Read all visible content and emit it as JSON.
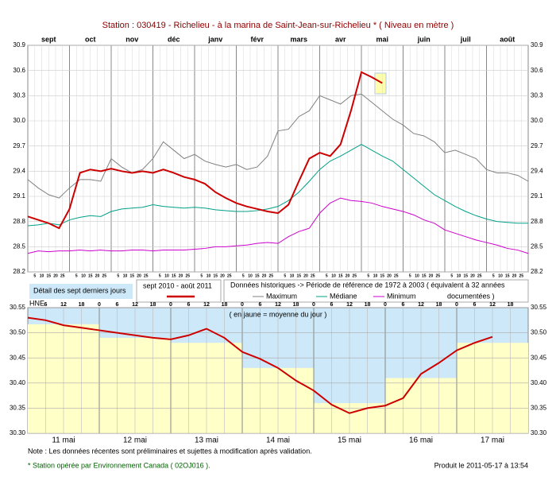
{
  "chart_data": [
    {
      "type": "line",
      "title": "Station : 030419      -   Richelieu - à la marina de Saint-Jean-sur-Richelieu *   ( Niveau en mètre )",
      "categories": [
        "sept",
        "oct",
        "nov",
        "déc",
        "janv",
        "févr",
        "mars",
        "avr",
        "mai",
        "juin",
        "juil",
        "août"
      ],
      "day_labels": [
        5,
        10,
        15,
        20,
        25
      ],
      "x": [
        0,
        0.25,
        0.5,
        0.75,
        1,
        1.25,
        1.5,
        1.75,
        2,
        2.25,
        2.5,
        2.75,
        3,
        3.25,
        3.5,
        3.75,
        4,
        4.25,
        4.5,
        4.75,
        5,
        5.25,
        5.5,
        5.75,
        6,
        6.25,
        6.5,
        6.75,
        7,
        7.25,
        7.5,
        7.75,
        8,
        8.25,
        8.5,
        8.75,
        9,
        9.25,
        9.5,
        9.75,
        10,
        10.25,
        10.5,
        10.75,
        11,
        11.25,
        11.5,
        11.75,
        12
      ],
      "xlim": [
        0,
        12
      ],
      "ylim": [
        28.2,
        30.9
      ],
      "yticks": [
        30.9,
        30.6,
        30.3,
        {
          "value": 30,
          "label": "30.0"
        },
        29.7,
        29.4,
        29.1,
        28.8,
        28.5,
        28.2
      ],
      "legend_note": [
        "Données historiques -> Période de référence  de 1972 à 2003  ( équivalent à 32 années",
        "documentées )"
      ],
      "series": [
        {
          "name": "sept 2010 - août 2011",
          "color": "#cc0000",
          "values": [
            28.86,
            28.82,
            28.78,
            28.72,
            28.95,
            29.38,
            29.42,
            29.4,
            29.43,
            29.4,
            29.38,
            29.4,
            29.38,
            29.42,
            29.38,
            29.33,
            29.3,
            29.25,
            29.15,
            29.08,
            29.02,
            28.98,
            28.95,
            28.92,
            28.9,
            29.0,
            29.28,
            29.55,
            29.62,
            29.58,
            29.72,
            30.12,
            30.58,
            30.52,
            30.45,
            null,
            null,
            null,
            null,
            null,
            null,
            null,
            null,
            null,
            null,
            null,
            null,
            null,
            null
          ]
        },
        {
          "name": "Maximum",
          "color": "#808080",
          "values": [
            29.3,
            29.2,
            29.12,
            29.08,
            29.2,
            29.3,
            29.3,
            29.28,
            29.55,
            29.45,
            29.38,
            29.42,
            29.55,
            29.75,
            29.65,
            29.55,
            29.6,
            29.52,
            29.48,
            29.45,
            29.48,
            29.42,
            29.45,
            29.58,
            29.88,
            29.9,
            30.05,
            30.12,
            30.3,
            30.25,
            30.2,
            30.3,
            30.32,
            30.22,
            30.12,
            30.02,
            29.95,
            29.85,
            29.82,
            29.75,
            29.62,
            29.65,
            29.6,
            29.55,
            29.42,
            29.38,
            29.38,
            29.35,
            29.28
          ]
        },
        {
          "name": "Médiane",
          "color": "#00a088",
          "values": [
            28.75,
            28.76,
            28.78,
            28.76,
            28.82,
            28.85,
            28.87,
            28.86,
            28.92,
            28.95,
            28.96,
            28.97,
            29.0,
            28.98,
            28.97,
            28.96,
            28.97,
            28.96,
            28.94,
            28.93,
            28.92,
            28.92,
            28.93,
            28.95,
            28.98,
            29.05,
            29.15,
            29.28,
            29.42,
            29.52,
            29.58,
            29.65,
            29.72,
            29.65,
            29.58,
            29.52,
            29.42,
            29.32,
            29.22,
            29.12,
            29.05,
            28.98,
            28.92,
            28.87,
            28.83,
            28.8,
            28.79,
            28.78,
            28.78
          ]
        },
        {
          "name": "Minimum",
          "color": "#cc00cc",
          "values": [
            28.42,
            28.45,
            28.44,
            28.45,
            28.45,
            28.46,
            28.45,
            28.46,
            28.45,
            28.45,
            28.46,
            28.46,
            28.45,
            28.46,
            28.46,
            28.46,
            28.47,
            28.48,
            28.5,
            28.5,
            28.51,
            28.52,
            28.54,
            28.55,
            28.54,
            28.62,
            28.68,
            28.72,
            28.9,
            29.02,
            29.08,
            29.05,
            29.04,
            29.02,
            28.98,
            28.95,
            28.92,
            28.88,
            28.82,
            28.78,
            28.7,
            28.66,
            28.62,
            28.58,
            28.55,
            28.52,
            28.48,
            28.46,
            28.42
          ]
        }
      ]
    },
    {
      "type": "line",
      "title": "Détail des sept derniers jours",
      "x_label": "HNE",
      "annotation": "( en jaune = moyenne du jour )",
      "categories": [
        "11 mai",
        "12 mai",
        "13 mai",
        "14 mai",
        "15 mai",
        "16 mai",
        "17 mai"
      ],
      "hour_labels": [
        0,
        6,
        12,
        18
      ],
      "x": [
        0,
        6,
        12,
        18,
        24,
        30,
        36,
        42,
        48,
        54,
        60,
        66,
        72,
        78,
        84,
        90,
        96,
        102,
        108,
        114,
        120,
        126,
        132,
        138,
        144,
        150,
        156
      ],
      "xlim": [
        0,
        168
      ],
      "ylim": [
        30.3,
        30.55
      ],
      "yticks": [
        30.55,
        {
          "value": 30.5,
          "label": "30.50"
        },
        30.45,
        {
          "value": 30.4,
          "label": "30.40"
        },
        30.35,
        {
          "value": 30.3,
          "label": "30.30"
        }
      ],
      "daily_mean": {
        "color": "#ffffc8",
        "values": [
          30.517,
          30.49,
          30.48,
          30.43,
          30.36,
          30.41,
          30.48
        ]
      },
      "background": "#cde8f8",
      "series": [
        {
          "color": "#cc0000",
          "values": [
            30.53,
            30.525,
            30.515,
            30.51,
            30.505,
            30.5,
            30.495,
            30.49,
            30.487,
            30.495,
            30.508,
            30.49,
            30.462,
            30.448,
            30.43,
            30.405,
            30.385,
            30.357,
            30.34,
            30.35,
            30.355,
            30.37,
            30.418,
            30.44,
            30.465,
            30.48,
            30.492
          ]
        }
      ]
    }
  ],
  "footer": {
    "note": "Note : Les données récentes sont préliminaires et sujettes à modification après validation.",
    "operator": "* Station opérée par Environnement Canada ( 02OJ016 ).",
    "produced": "Produit le 2011-05-17 à 13:54"
  }
}
